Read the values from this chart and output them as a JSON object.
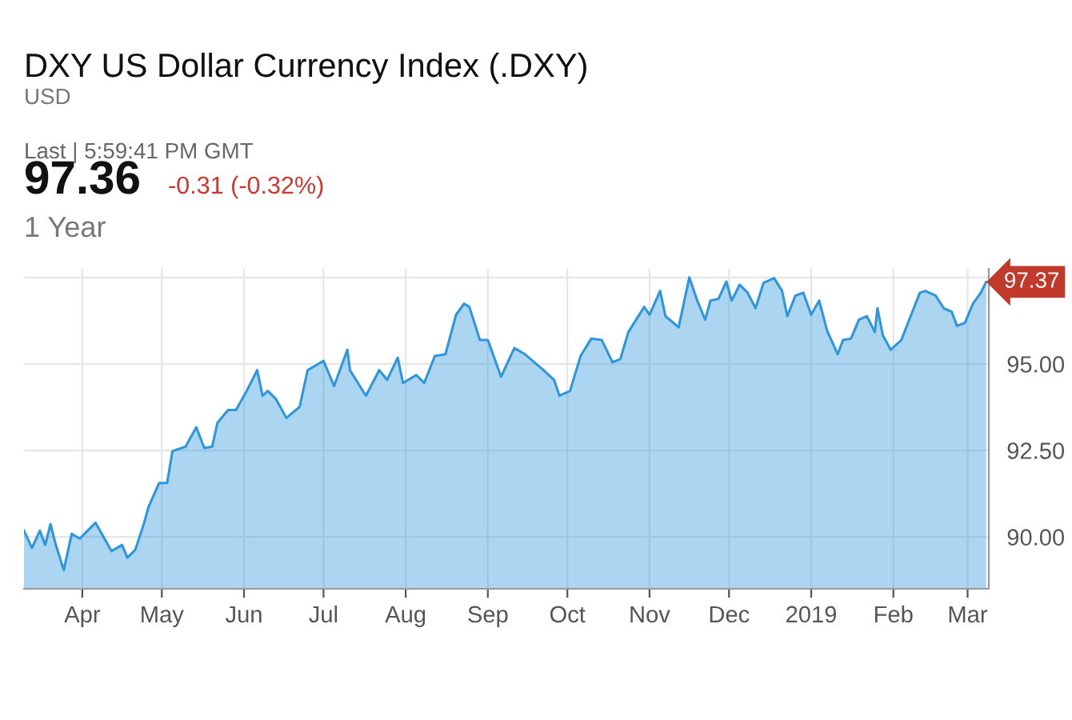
{
  "chart_data": {
    "type": "area",
    "title": "DXY US Dollar Currency Index (.DXY)",
    "subtitle": "USD",
    "annotations": [
      "Last | 5:59:41 PM GMT",
      "97.36",
      "-0.31 (-0.32%)",
      "1 Year",
      {
        "text": "97.37",
        "x": "2019-03-08",
        "y": 97.37
      }
    ],
    "series": [
      {
        "color": "#2e96dc",
        "x": [
          "2018-03-10",
          "2018-03-13",
          "2018-03-16",
          "2018-03-18",
          "2018-03-20",
          "2018-03-22",
          "2018-03-25",
          "2018-03-28",
          "2018-03-31",
          "2018-04-06",
          "2018-04-12",
          "2018-04-16",
          "2018-04-18",
          "2018-04-21",
          "2018-04-24",
          "2018-04-26",
          "2018-04-30",
          "2018-05-03",
          "2018-05-05",
          "2018-05-10",
          "2018-05-14",
          "2018-05-17",
          "2018-05-20",
          "2018-05-22",
          "2018-05-26",
          "2018-05-29",
          "2018-06-02",
          "2018-06-06",
          "2018-06-08",
          "2018-06-10",
          "2018-06-13",
          "2018-06-17",
          "2018-06-22",
          "2018-06-25",
          "2018-07-01",
          "2018-07-05",
          "2018-07-10",
          "2018-07-11",
          "2018-07-17",
          "2018-07-22",
          "2018-07-25",
          "2018-07-29",
          "2018-07-31",
          "2018-08-05",
          "2018-08-08",
          "2018-08-12",
          "2018-08-16",
          "2018-08-20",
          "2018-08-23",
          "2018-08-25",
          "2018-08-29",
          "2018-09-01",
          "2018-09-06",
          "2018-09-11",
          "2018-09-15",
          "2018-09-22",
          "2018-09-26",
          "2018-09-28",
          "2018-10-02",
          "2018-10-06",
          "2018-10-10",
          "2018-10-14",
          "2018-10-18",
          "2018-10-21",
          "2018-10-24",
          "2018-10-30",
          "2018-11-01",
          "2018-11-05",
          "2018-11-07",
          "2018-11-12",
          "2018-11-16",
          "2018-11-19",
          "2018-11-22",
          "2018-11-24",
          "2018-11-27",
          "2018-11-30",
          "2018-12-02",
          "2018-12-05",
          "2018-12-08",
          "2018-12-11",
          "2018-12-14",
          "2018-12-18",
          "2018-12-21",
          "2018-12-23",
          "2018-12-26",
          "2018-12-29",
          "2019-01-01",
          "2019-01-04",
          "2019-01-07",
          "2019-01-11",
          "2019-01-13",
          "2019-01-16",
          "2019-01-19",
          "2019-01-22",
          "2019-01-25",
          "2019-01-26",
          "2019-01-28",
          "2019-01-31",
          "2019-02-04",
          "2019-02-07",
          "2019-02-11",
          "2019-02-13",
          "2019-02-17",
          "2019-02-20",
          "2019-02-23",
          "2019-02-25",
          "2019-02-28",
          "2019-03-03",
          "2019-03-06",
          "2019-03-08"
        ],
        "values": [
          90.18,
          89.68,
          90.18,
          89.77,
          90.37,
          89.77,
          89.04,
          90.09,
          89.95,
          90.41,
          89.59,
          89.77,
          89.4,
          89.63,
          90.32,
          90.87,
          91.56,
          91.56,
          92.48,
          92.61,
          93.17,
          92.57,
          92.61,
          93.3,
          93.67,
          93.67,
          94.22,
          94.82,
          94.08,
          94.22,
          93.99,
          93.44,
          93.76,
          94.82,
          95.09,
          94.36,
          95.41,
          94.82,
          94.08,
          94.82,
          94.54,
          95.18,
          94.45,
          94.68,
          94.45,
          95.23,
          95.28,
          96.42,
          96.74,
          96.65,
          95.69,
          95.69,
          94.63,
          95.46,
          95.28,
          94.82,
          94.54,
          94.08,
          94.22,
          95.23,
          95.73,
          95.69,
          95.05,
          95.14,
          95.92,
          96.65,
          96.42,
          97.11,
          96.38,
          96.06,
          97.5,
          96.83,
          96.28,
          96.83,
          96.88,
          97.38,
          96.83,
          97.29,
          97.06,
          96.61,
          97.34,
          97.48,
          97.11,
          96.38,
          96.97,
          97.06,
          96.42,
          96.83,
          95.96,
          95.28,
          95.69,
          95.73,
          96.28,
          96.38,
          95.92,
          96.61,
          95.83,
          95.41,
          95.69,
          96.28,
          97.06,
          97.11,
          96.97,
          96.61,
          96.51,
          96.1,
          96.19,
          96.74,
          97.06,
          97.37
        ]
      }
    ],
    "xlim": [
      "2018-03-10",
      "2019-03-09"
    ],
    "xticks": [
      {
        "value": "2018-04-01",
        "label": "Apr"
      },
      {
        "value": "2018-05-01",
        "label": "May"
      },
      {
        "value": "2018-06-01",
        "label": "Jun"
      },
      {
        "value": "2018-07-01",
        "label": "Jul"
      },
      {
        "value": "2018-08-01",
        "label": "Aug"
      },
      {
        "value": "2018-09-01",
        "label": "Sep"
      },
      {
        "value": "2018-10-01",
        "label": "Oct"
      },
      {
        "value": "2018-11-01",
        "label": "Nov"
      },
      {
        "value": "2018-12-01",
        "label": "Dec"
      },
      {
        "value": "2019-01-01",
        "label": "2019"
      },
      {
        "value": "2019-02-01",
        "label": "Feb"
      },
      {
        "value": "2019-03-01",
        "label": "Mar"
      }
    ],
    "ylim": [
      88.5,
      97.75
    ],
    "yticks": [
      {
        "value": 90,
        "label": "90.00"
      },
      {
        "value": 92.5,
        "label": "92.50"
      },
      {
        "value": 95,
        "label": "95.00"
      },
      {
        "value": 97.5,
        "label": null
      }
    ],
    "grid": true,
    "legend": false
  }
}
